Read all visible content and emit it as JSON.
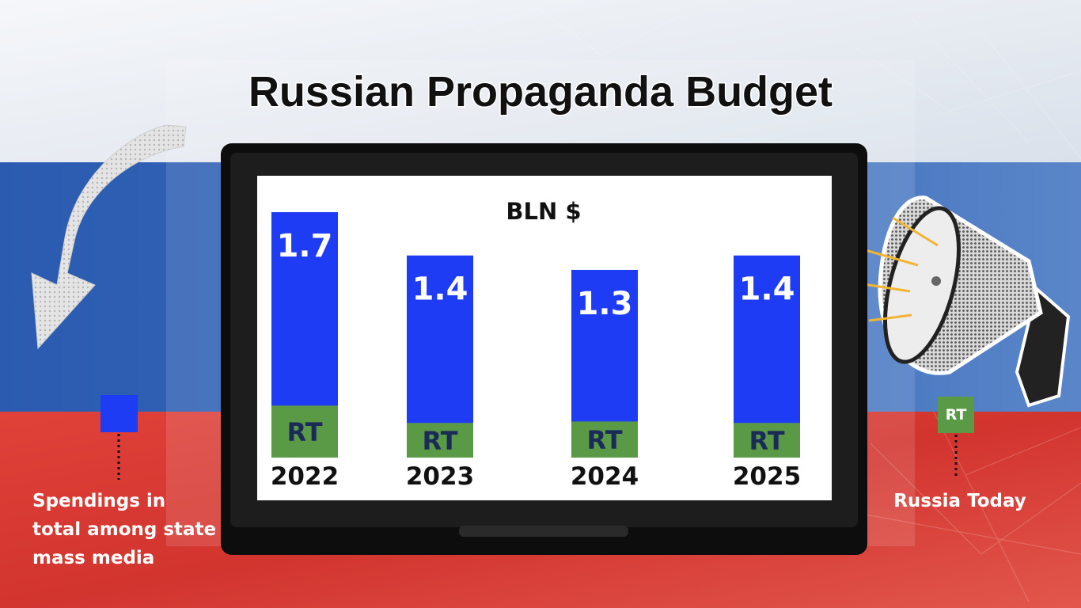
{
  "title": "Russian Propaganda Budget",
  "legend": {
    "total": {
      "label": "Spendings in total among state mass media",
      "lines": [
        "Spendings in",
        "total among state",
        "mass media"
      ],
      "color": "#1f3cf5"
    },
    "rt": {
      "label": "Russia Today",
      "badge": "RT",
      "color": "#5a9a46"
    }
  },
  "colors": {
    "flag_white": "#e9eef4",
    "flag_blue": "#2f5fb0",
    "flag_red": "#d9382f",
    "screen_bg": "#ffffff",
    "tv_frame": "#111111",
    "total_bar": "#1f3cf5",
    "rt_bar": "#5a9a46",
    "rt_text": "#1b2b58"
  },
  "icons": [
    "arrow-down-icon",
    "megaphone-icon"
  ],
  "chart_data": {
    "type": "bar",
    "stacked_overlay": true,
    "unit_label": "BLN $",
    "categories": [
      "2022",
      "2023",
      "2024",
      "2025"
    ],
    "series": [
      {
        "name": "Spendings in total among state mass media",
        "values": [
          1.7,
          1.4,
          1.3,
          1.4
        ],
        "value_labels": [
          "1.7",
          "1.4",
          "1.3",
          "1.4"
        ]
      },
      {
        "name": "Russia Today",
        "values": [
          0.36,
          0.24,
          0.25,
          0.24
        ],
        "bar_label": "RT"
      }
    ],
    "ylim": [
      0,
      1.7
    ],
    "grid": false,
    "legend_position": "outside-left-right"
  }
}
